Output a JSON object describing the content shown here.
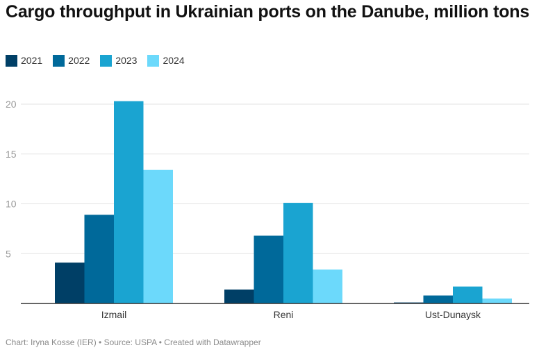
{
  "title": "Cargo throughput in Ukrainian ports on the Danube, million tons",
  "footer": {
    "chart_prefix": "Chart: ",
    "author": "Iryna Kosse (IER)",
    "sep": " • ",
    "source_prefix": "Source: ",
    "source": "USPA",
    "created": "Created with Datawrapper"
  },
  "chart_data": {
    "type": "bar",
    "title": "Cargo throughput in Ukrainian ports on the Danube, million tons",
    "xlabel": "",
    "ylabel": "",
    "categories": [
      "Izmail",
      "Reni",
      "Ust-Dunaysk"
    ],
    "series": [
      {
        "name": "2021",
        "color": "#003f66",
        "values": [
          4.1,
          1.4,
          0.1
        ]
      },
      {
        "name": "2022",
        "color": "#00699a",
        "values": [
          8.9,
          6.8,
          0.8
        ]
      },
      {
        "name": "2023",
        "color": "#1aa4d1",
        "values": [
          20.3,
          10.1,
          1.7
        ]
      },
      {
        "name": "2024",
        "color": "#6cd9fb",
        "values": [
          13.4,
          3.4,
          0.5
        ]
      }
    ],
    "ylim": [
      0,
      20.5
    ],
    "yticks": [
      5,
      10,
      15,
      20
    ],
    "grid": true,
    "legend": "top-left"
  }
}
